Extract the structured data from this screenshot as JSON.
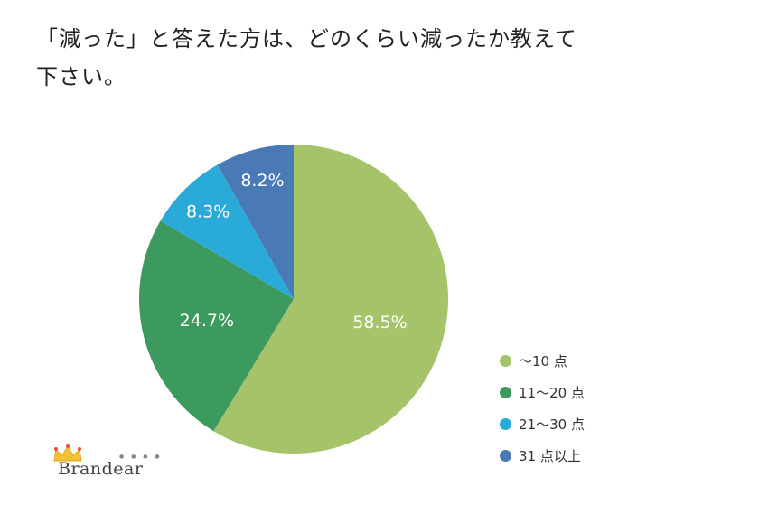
{
  "title_lines": [
    "「減った」と答えた方は、どのくらい減ったか教えて",
    "下さい。"
  ],
  "logo": {
    "text": "Brandear"
  },
  "chart_data": {
    "type": "pie",
    "start_angle_deg": 0,
    "direction": "clockwise",
    "slices": [
      {
        "label": "〜10 点",
        "value": 58.5,
        "value_label": "58.5%",
        "color": "#a5c369"
      },
      {
        "label": "11〜20 点",
        "value": 24.7,
        "value_label": "24.7%",
        "color": "#3c9a5f"
      },
      {
        "label": "21〜30 点",
        "value": 8.3,
        "value_label": "8.3%",
        "color": "#29aad9"
      },
      {
        "label": "31 点以上",
        "value": 8.2,
        "value_label": "8.2%",
        "color": "#4a7ab5"
      }
    ],
    "legend_position": "right-bottom"
  }
}
